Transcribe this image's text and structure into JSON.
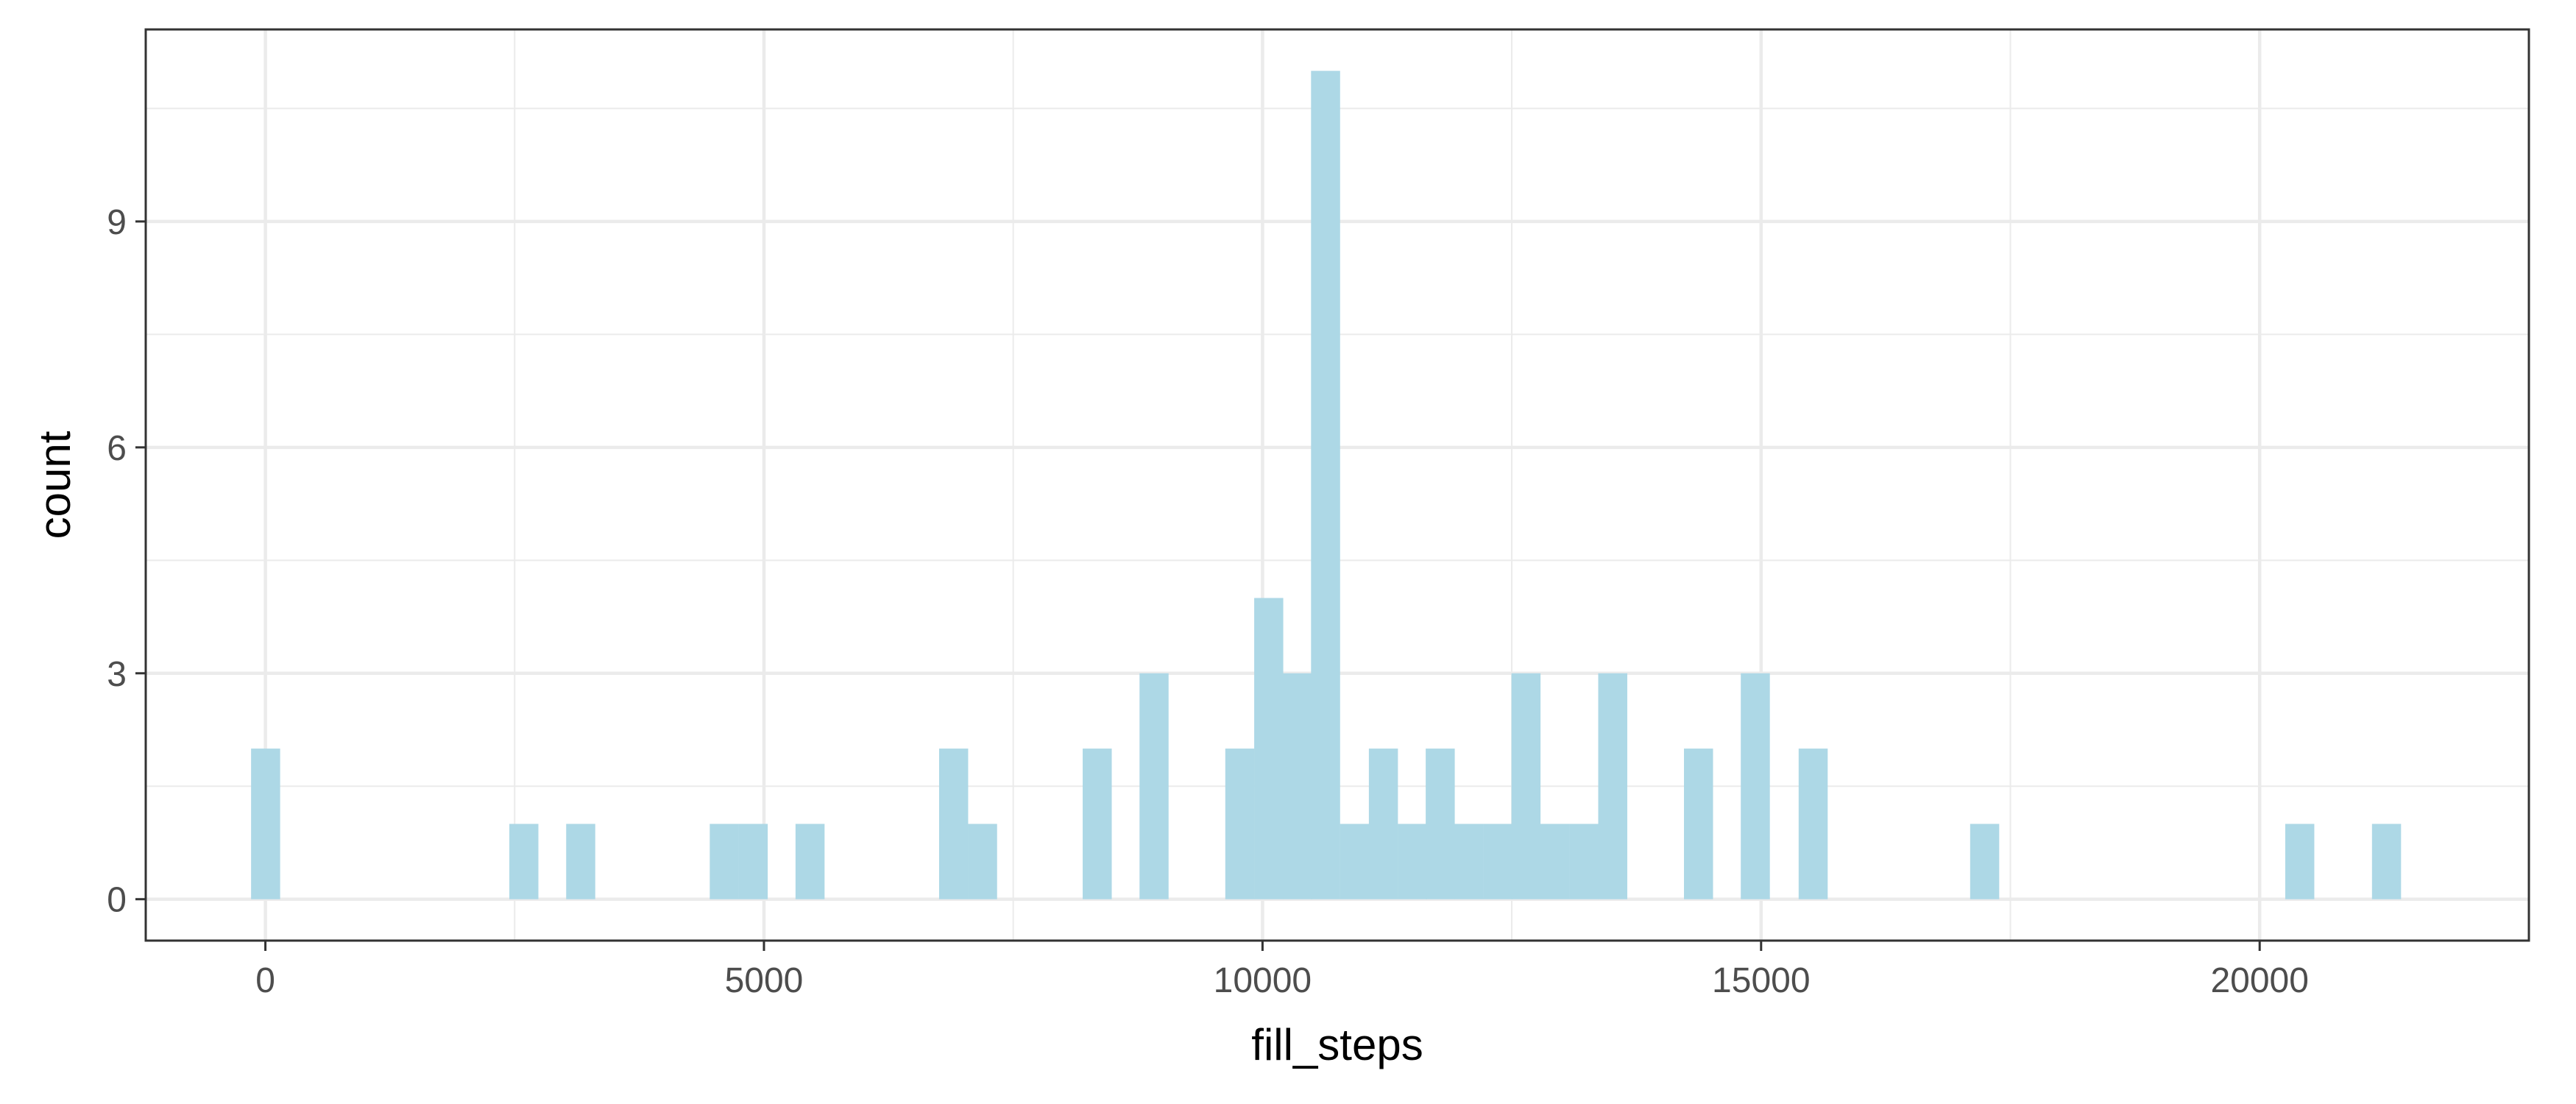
{
  "chart_data": {
    "type": "bar",
    "subtype": "histogram",
    "title": "",
    "xlabel": "fill_steps",
    "ylabel": "count",
    "xlim": [
      -1200,
      22700
    ],
    "ylim": [
      -0.55,
      11.55
    ],
    "x_ticks": [
      0,
      5000,
      10000,
      15000,
      20000
    ],
    "x_tick_labels": [
      "0",
      "5000",
      "10000",
      "15000",
      "20000"
    ],
    "y_ticks": [
      0,
      3,
      6,
      9
    ],
    "y_tick_labels": [
      "0",
      "3",
      "6",
      "9"
    ],
    "x_minor_ticks": [
      2500,
      7500,
      12500,
      17500
    ],
    "y_minor_ticks": [
      1.5,
      4.5,
      7.5,
      10.5
    ],
    "bin_width": 287,
    "grid": true,
    "legend": "none",
    "bar_color": "#add8e6",
    "grid_color": "#ebebeb",
    "panel_border_color": "#333333",
    "bins": [
      {
        "x": 0,
        "count": 2
      },
      {
        "x": 2590,
        "count": 1
      },
      {
        "x": 3160,
        "count": 1
      },
      {
        "x": 4600,
        "count": 1
      },
      {
        "x": 4890,
        "count": 1
      },
      {
        "x": 5460,
        "count": 1
      },
      {
        "x": 6900,
        "count": 2
      },
      {
        "x": 7190,
        "count": 1
      },
      {
        "x": 8340,
        "count": 2
      },
      {
        "x": 8910,
        "count": 3
      },
      {
        "x": 9770,
        "count": 2
      },
      {
        "x": 10060,
        "count": 4
      },
      {
        "x": 10350,
        "count": 3
      },
      {
        "x": 10630,
        "count": 11
      },
      {
        "x": 10920,
        "count": 1
      },
      {
        "x": 11210,
        "count": 2
      },
      {
        "x": 11500,
        "count": 1
      },
      {
        "x": 11780,
        "count": 2
      },
      {
        "x": 12070,
        "count": 1
      },
      {
        "x": 12360,
        "count": 1
      },
      {
        "x": 12640,
        "count": 3
      },
      {
        "x": 12930,
        "count": 1
      },
      {
        "x": 13220,
        "count": 1
      },
      {
        "x": 13510,
        "count": 3
      },
      {
        "x": 14370,
        "count": 2
      },
      {
        "x": 14940,
        "count": 3
      },
      {
        "x": 15520,
        "count": 2
      },
      {
        "x": 17240,
        "count": 1
      },
      {
        "x": 20400,
        "count": 1
      },
      {
        "x": 21270,
        "count": 1
      }
    ]
  }
}
